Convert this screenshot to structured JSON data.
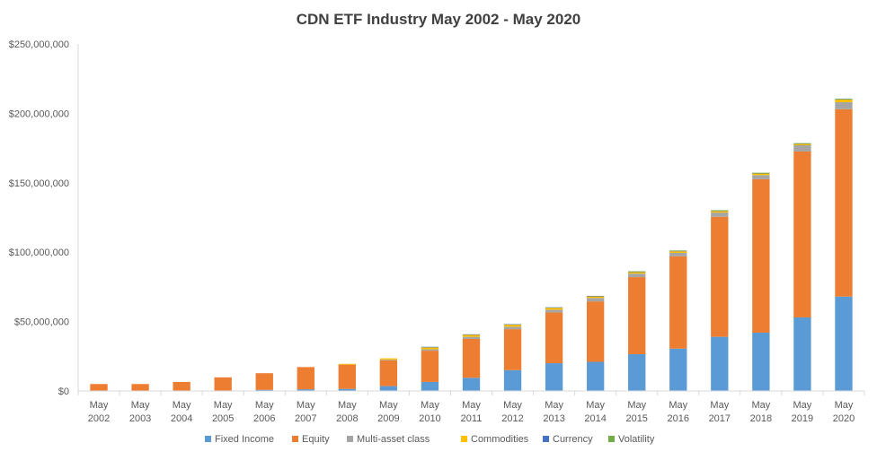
{
  "chart_data": {
    "type": "bar",
    "stacked": true,
    "title": "CDN ETF Industry May 2002 - May 2020",
    "xlabel": "",
    "ylabel": "",
    "ylim": [
      0,
      250000000
    ],
    "y_ticks": [
      "$0",
      "$50,000,000",
      "$100,000,000",
      "$150,000,000",
      "$200,000,000",
      "$250,000,000"
    ],
    "y_tick_values": [
      0,
      50000000,
      100000000,
      150000000,
      200000000,
      250000000
    ],
    "grid": false,
    "legend_position": "bottom",
    "categories": [
      [
        "May",
        "2002"
      ],
      [
        "May",
        "2003"
      ],
      [
        "May",
        "2004"
      ],
      [
        "May",
        "2005"
      ],
      [
        "May",
        "2006"
      ],
      [
        "May",
        "2007"
      ],
      [
        "May",
        "2008"
      ],
      [
        "May",
        "2009"
      ],
      [
        "May",
        "2010"
      ],
      [
        "May",
        "2011"
      ],
      [
        "May",
        "2012"
      ],
      [
        "May",
        "2013"
      ],
      [
        "May",
        "2014"
      ],
      [
        "May",
        "2015"
      ],
      [
        "May",
        "2016"
      ],
      [
        "May",
        "2017"
      ],
      [
        "May",
        "2018"
      ],
      [
        "May",
        "2019"
      ],
      [
        "May",
        "2020"
      ]
    ],
    "series": [
      {
        "name": "Fixed Income",
        "color": "#5B9BD5",
        "values": [
          0,
          0,
          0,
          300000,
          800000,
          1200000,
          1500000,
          3500000,
          6500000,
          9500000,
          15000000,
          20000000,
          21000000,
          26500000,
          30500000,
          39000000,
          42000000,
          53000000,
          68000000
        ]
      },
      {
        "name": "Equity",
        "color": "#ED7D31",
        "values": [
          5000000,
          5000000,
          6500000,
          9500000,
          12000000,
          16000000,
          17500000,
          18500000,
          22500000,
          28000000,
          29500000,
          36500000,
          43500000,
          55500000,
          66500000,
          86500000,
          110500000,
          119500000,
          135000000
        ]
      },
      {
        "name": "Multi-asset class",
        "color": "#A5A5A5",
        "values": [
          0,
          0,
          0,
          0,
          0,
          0,
          0,
          500000,
          1000000,
          1500000,
          1800000,
          2000000,
          2500000,
          2500000,
          2500000,
          3000000,
          3000000,
          4500000,
          5000000
        ]
      },
      {
        "name": "Commodities",
        "color": "#FFC000",
        "values": [
          0,
          0,
          0,
          0,
          0,
          0,
          500000,
          1000000,
          1500000,
          1500000,
          1500000,
          1500000,
          1200000,
          1200000,
          1200000,
          1200000,
          1200000,
          1000000,
          2000000
        ]
      },
      {
        "name": "Currency",
        "color": "#4472C4",
        "values": [
          0,
          0,
          0,
          0,
          0,
          0,
          0,
          0,
          300000,
          300000,
          300000,
          300000,
          300000,
          300000,
          300000,
          300000,
          300000,
          300000,
          300000
        ]
      },
      {
        "name": "Volatility",
        "color": "#70AD47",
        "values": [
          0,
          0,
          0,
          0,
          0,
          0,
          0,
          0,
          0,
          0,
          0,
          0,
          0,
          200000,
          200000,
          200000,
          200000,
          200000,
          200000
        ]
      }
    ]
  }
}
